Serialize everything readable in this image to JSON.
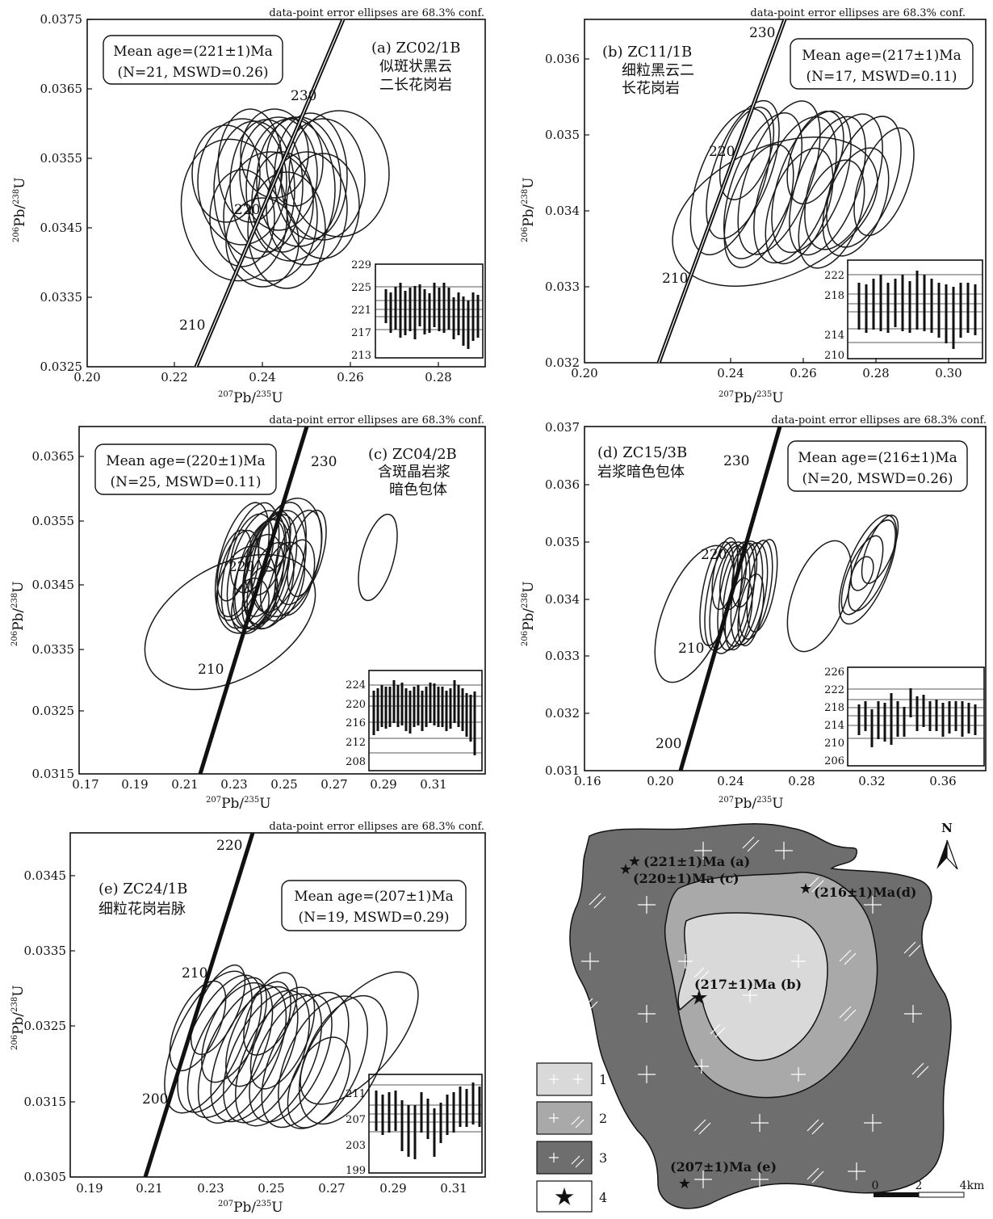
{
  "panels": [
    {
      "id": "a",
      "header_note": "data-point error ellipses are 68.3% conf.",
      "label_lines": [
        "(a)  ZC02/1B",
        "似斑状黑云",
        "二长花岗岩"
      ],
      "mean_age_lines": [
        "Mean age=(221±1)Ma",
        "(N=21, MSWD=0.26)"
      ],
      "x_label": "207Pb/235U",
      "y_label": "206Pb/238U",
      "x_ticks": [
        "0.20",
        "0.22",
        "0.24",
        "0.26",
        "0.28"
      ],
      "y_ticks": [
        "0.0325",
        "0.0335",
        "0.0345",
        "0.0355",
        "0.0365",
        "0.0375"
      ],
      "concordia_labels": [
        "210",
        "220",
        "230"
      ],
      "inset_ticks": [
        "229",
        "225",
        "221",
        "217",
        "213"
      ]
    },
    {
      "id": "b",
      "header_note": "data-point error ellipses are 68.3% conf.",
      "label_lines": [
        "(b)  ZC11/1B",
        "细粒黑云二",
        "长花岗岩"
      ],
      "mean_age_lines": [
        "Mean age=(217±1)Ma",
        "(N=17, MSWD=0.11)"
      ],
      "x_label": "207Pb/235U",
      "y_label": "206Pb/238U",
      "x_ticks": [
        "0.20",
        "0.24",
        "0.26",
        "0.28",
        "0.30"
      ],
      "y_ticks": [
        "0.032",
        "0.033",
        "0.034",
        "0.035",
        "0.036"
      ],
      "concordia_labels": [
        "210",
        "220",
        "230"
      ],
      "inset_ticks": [
        "222",
        "218",
        "214",
        "210"
      ]
    },
    {
      "id": "c",
      "header_note": "data-point error ellipses are 68.3% conf.",
      "label_lines": [
        "(c)  ZC04/2B",
        "含斑晶岩浆",
        "暗色包体"
      ],
      "mean_age_lines": [
        "Mean age=(220±1)Ma",
        "(N=25, MSWD=0.11)"
      ],
      "x_label": "207Pb/235U",
      "y_label": "206Pb/238U",
      "x_ticks": [
        "0.17",
        "0.19",
        "0.21",
        "0.23",
        "0.25",
        "0.27",
        "0.29",
        "0.31"
      ],
      "y_ticks": [
        "0.0315",
        "0.0325",
        "0.0335",
        "0.0345",
        "0.0355",
        "0.0365"
      ],
      "concordia_labels": [
        "210",
        "220",
        "230"
      ],
      "inset_ticks": [
        "224",
        "220",
        "216",
        "212",
        "208"
      ]
    },
    {
      "id": "d",
      "header_note": "data-point error ellipses are 68.3% conf.",
      "label_lines": [
        "(d)  ZC15/3B",
        "岩浆暗色包体"
      ],
      "mean_age_lines": [
        "Mean age=(216±1)Ma",
        "(N=20, MSWD=0.26)"
      ],
      "x_label": "207Pb/235U",
      "y_label": "206Pb/238U",
      "x_ticks": [
        "0.16",
        "0.20",
        "0.24",
        "0.28",
        "0.32",
        "0.36"
      ],
      "y_ticks": [
        "0.031",
        "0.032",
        "0.033",
        "0.034",
        "0.035",
        "0.036",
        "0.037"
      ],
      "concordia_labels": [
        "200",
        "210",
        "220",
        "230"
      ],
      "inset_ticks": [
        "226",
        "222",
        "218",
        "214",
        "210",
        "206"
      ]
    },
    {
      "id": "e",
      "header_note": "data-point error ellipses are 68.3% conf.",
      "label_lines": [
        "(e)  ZC24/1B",
        "细粒花岗岩脉"
      ],
      "mean_age_lines": [
        "Mean age=(207±1)Ma",
        "(N=19, MSWD=0.29)"
      ],
      "x_label": "207Pb/235U",
      "y_label": "206Pb/238U",
      "x_ticks": [
        "0.19",
        "0.21",
        "0.23",
        "0.25",
        "0.27",
        "0.29",
        "0.31"
      ],
      "y_ticks": [
        "0.0305",
        "0.0315",
        "0.0325",
        "0.0335",
        "0.0345"
      ],
      "concordia_labels": [
        "200",
        "210",
        "220"
      ],
      "inset_ticks": [
        "211",
        "207",
        "203",
        "199"
      ]
    }
  ],
  "map": {
    "north": "N",
    "site_labels": [
      "(221±1)Ma  (a)",
      "(220±1)Ma  (c)",
      "(216±1)Ma(d)",
      "(217±1)Ma (b)",
      "(207±1)Ma (e)"
    ],
    "legend_items": [
      "1",
      "2",
      "3",
      "4"
    ],
    "scale_labels": [
      "0",
      "2",
      "4km"
    ],
    "colors": {
      "unit1": "#d9d9d9",
      "unit2": "#a9a9a9",
      "unit3": "#6e6e6e",
      "star": "#808080"
    }
  },
  "chart_data": [
    {
      "type": "scatter",
      "title": "(a)  ZC02/1B",
      "xlabel": "207Pb/235U",
      "ylabel": "206Pb/238U",
      "xlim": [
        0.2,
        0.29
      ],
      "ylim": [
        0.0325,
        0.0375
      ],
      "series": [],
      "annotation": "Mean age=(221±1)Ma (N=21, MSWD=0.26)"
    },
    {
      "type": "scatter",
      "title": "(b)  ZC11/1B",
      "xlabel": "207Pb/235U",
      "ylabel": "206Pb/238U",
      "xlim": [
        0.2,
        0.31
      ],
      "ylim": [
        0.032,
        0.0365
      ],
      "series": [],
      "annotation": "Mean age=(217±1)Ma (N=17, MSWD=0.11)"
    },
    {
      "type": "scatter",
      "title": "(c)  ZC04/2B",
      "xlabel": "207Pb/235U",
      "ylabel": "206Pb/238U",
      "xlim": [
        0.17,
        0.33
      ],
      "ylim": [
        0.0315,
        0.037
      ],
      "series": [],
      "annotation": "Mean age=(220±1)Ma (N=25, MSWD=0.11)"
    },
    {
      "type": "scatter",
      "title": "(d)  ZC15/3B",
      "xlabel": "207Pb/235U",
      "ylabel": "206Pb/238U",
      "xlim": [
        0.16,
        0.38
      ],
      "ylim": [
        0.031,
        0.037
      ],
      "series": [],
      "annotation": "Mean age=(216±1)Ma (N=20, MSWD=0.26)"
    },
    {
      "type": "scatter",
      "title": "(e)  ZC24/1B",
      "xlabel": "207Pb/235U",
      "ylabel": "206Pb/238U",
      "xlim": [
        0.19,
        0.32
      ],
      "ylim": [
        0.0305,
        0.035
      ],
      "series": [],
      "annotation": "Mean age=(207±1)Ma (N=19, MSWD=0.29)"
    }
  ]
}
